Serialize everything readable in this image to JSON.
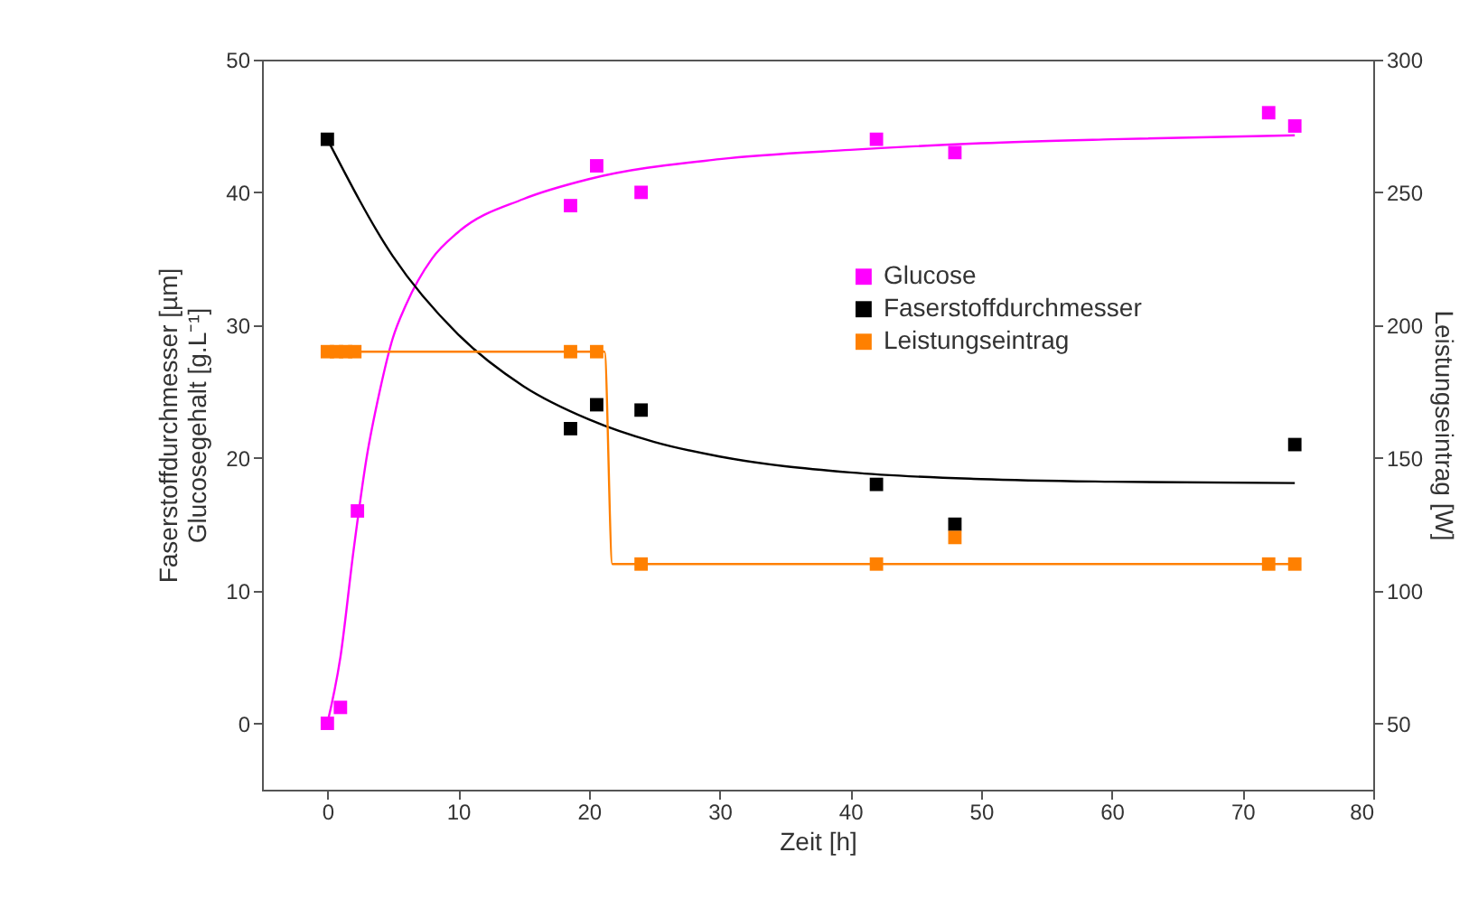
{
  "chart_data": {
    "type": "scatter",
    "xlabel": "Zeit [h]",
    "ylabel": "Faserstoffdurchmesser [µm]\nGlucosegehalt [g.L⁻¹]",
    "y2label": "Leistungseintrag [W]",
    "xlim": [
      -5,
      80
    ],
    "xticks": [
      0,
      10,
      20,
      30,
      40,
      50,
      60,
      70,
      80
    ],
    "ylim": [
      -5,
      50
    ],
    "yticks": [
      0,
      10,
      20,
      30,
      40,
      50
    ],
    "y2lim": [
      25,
      300
    ],
    "y2ticks": [
      50,
      100,
      150,
      200,
      250,
      300
    ],
    "marker": "square",
    "legend": "right",
    "grid": false,
    "series": [
      {
        "name": "Glucose",
        "color": "#ff00ff",
        "x": [
          0,
          1,
          2.3,
          18.6,
          20.6,
          24,
          42,
          48,
          72,
          74
        ],
        "values": [
          0,
          1.2,
          16,
          39,
          42,
          40,
          44,
          43,
          46,
          45
        ]
      },
      {
        "name": "Faserstoffdurchmesser",
        "color": "#000000",
        "x": [
          0,
          18.6,
          20.6,
          24,
          42,
          48,
          74
        ],
        "values": [
          44,
          22.2,
          24,
          23.6,
          18,
          15,
          21
        ]
      },
      {
        "name": "Leistungseintrag",
        "color": "#ff8000",
        "axis": "y2",
        "x": [
          0,
          0.7,
          1.4,
          2.1,
          18.6,
          20.6,
          24,
          42,
          48,
          72,
          74
        ],
        "values": [
          190,
          190,
          190,
          190,
          190,
          190,
          110,
          110,
          120,
          110,
          110
        ]
      },
      {
        "type": "line",
        "marker": "none",
        "color": "#ff00ff",
        "x": [
          0,
          1,
          2,
          3,
          4,
          5,
          6,
          8,
          10,
          15,
          20,
          30,
          40,
          50,
          60,
          74
        ],
        "values": [
          0,
          5,
          13,
          20,
          25,
          29,
          31.5,
          35,
          37,
          39.5,
          41,
          42.5,
          43.2,
          43.7,
          44,
          44.3
        ]
      },
      {
        "type": "line",
        "marker": "none",
        "color": "#000000",
        "x": [
          0,
          5,
          10,
          15,
          20,
          25,
          30,
          40,
          50,
          60,
          74
        ],
        "values": [
          44,
          35.2,
          29.3,
          25.4,
          22.9,
          21.2,
          20.1,
          18.9,
          18.4,
          18.2,
          18.1
        ]
      },
      {
        "type": "line",
        "marker": "none",
        "color": "#ff8000",
        "axis": "y2",
        "x": [
          0,
          21.2,
          21.8,
          74
        ],
        "values": [
          190,
          190,
          110,
          110
        ]
      }
    ]
  }
}
